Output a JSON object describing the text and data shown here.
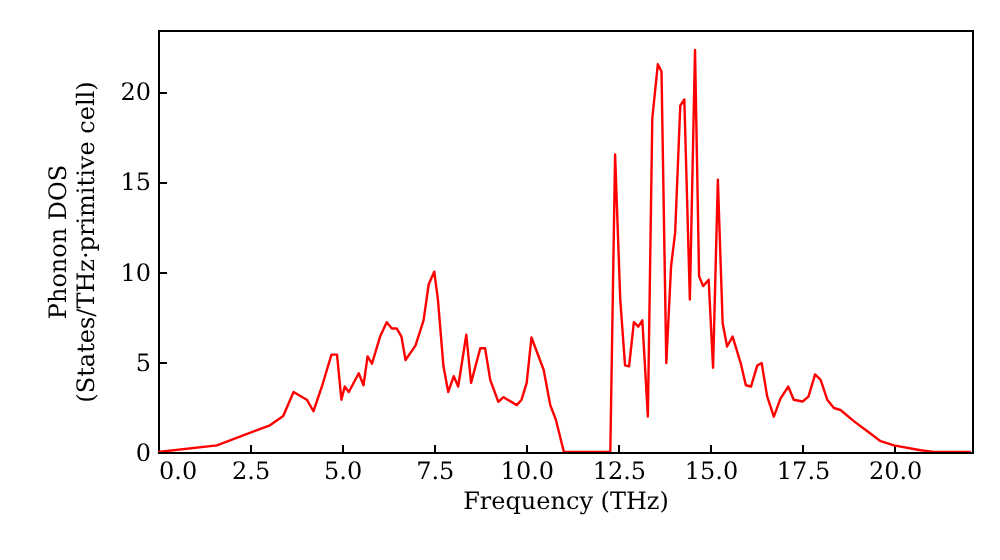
{
  "chart_data": {
    "type": "line",
    "xlabel": "Frequency (THz)",
    "ylabel": "Phonon DOS\n(States/THz·primitive cell)",
    "xlim": [
      0,
      22.1
    ],
    "ylim": [
      0,
      23.4
    ],
    "xticks": [
      {
        "value": 0,
        "label": "0.0"
      },
      {
        "value": 2.5,
        "label": "2.5"
      },
      {
        "value": 5,
        "label": "5.0"
      },
      {
        "value": 7.5,
        "label": "7.5"
      },
      {
        "value": 10,
        "label": "10.0"
      },
      {
        "value": 12.5,
        "label": "12.5"
      },
      {
        "value": 15,
        "label": "15.0"
      },
      {
        "value": 17.5,
        "label": "17.5"
      },
      {
        "value": 20,
        "label": "20.0"
      }
    ],
    "yticks": [
      0,
      5,
      10,
      15,
      20
    ],
    "line_style": "solid",
    "series": [
      {
        "color": "#ff0000",
        "x": [
          0,
          1.6,
          3.04,
          3.4,
          3.68,
          4.04,
          4.22,
          4.46,
          4.71,
          4.86,
          4.98,
          5.07,
          5.18,
          5.45,
          5.58,
          5.69,
          5.81,
          6.03,
          6.21,
          6.35,
          6.48,
          6.61,
          6.72,
          6.99,
          7.21,
          7.35,
          7.5,
          7.6,
          7.75,
          7.88,
          8.03,
          8.15,
          8.37,
          8.5,
          8.75,
          8.88,
          9.02,
          9.24,
          9.38,
          9.74,
          9.87,
          10.01,
          10.14,
          10.47,
          10.65,
          10.8,
          11.02,
          12.28,
          12.41,
          12.55,
          12.68,
          12.79,
          12.92,
          13.04,
          13.15,
          13.3,
          13.42,
          13.57,
          13.67,
          13.8,
          13.93,
          14.04,
          14.18,
          14.29,
          14.44,
          14.58,
          14.69,
          14.8,
          14.95,
          15.07,
          15.2,
          15.33,
          15.45,
          15.6,
          15.82,
          15.96,
          16.1,
          16.27,
          16.39,
          16.54,
          16.72,
          16.9,
          17.11,
          17.26,
          17.5,
          17.66,
          17.84,
          17.99,
          18.17,
          18.35,
          18.53,
          18.9,
          19.26,
          19.62,
          19.98,
          20.7,
          21.07,
          22.07
        ],
        "values": [
          0,
          0.37,
          1.48,
          2.0,
          3.33,
          2.9,
          2.26,
          3.7,
          5.4,
          5.4,
          2.9,
          3.63,
          3.33,
          4.37,
          3.7,
          5.3,
          4.9,
          6.4,
          7.2,
          6.85,
          6.85,
          6.4,
          5.1,
          5.9,
          7.3,
          9.3,
          10.0,
          8.45,
          4.75,
          3.33,
          4.2,
          3.63,
          6.5,
          3.83,
          5.75,
          5.75,
          4.0,
          2.78,
          3.04,
          2.6,
          2.9,
          3.83,
          6.35,
          4.56,
          2.6,
          1.8,
          0,
          0,
          16.5,
          8.45,
          4.8,
          4.75,
          7.2,
          6.95,
          7.3,
          1.96,
          18.5,
          21.5,
          21.1,
          4.93,
          10.3,
          12.15,
          19.2,
          19.55,
          8.45,
          22.3,
          9.75,
          9.2,
          9.55,
          4.67,
          15.1,
          7.15,
          5.85,
          6.4,
          4.93,
          3.7,
          3.63,
          4.8,
          4.93,
          3.07,
          1.96,
          2.96,
          3.63,
          2.9,
          2.8,
          3.07,
          4.3,
          4.0,
          2.9,
          2.44,
          2.33,
          1.7,
          1.15,
          0.6,
          0.37,
          0.1,
          0,
          0
        ]
      }
    ]
  }
}
